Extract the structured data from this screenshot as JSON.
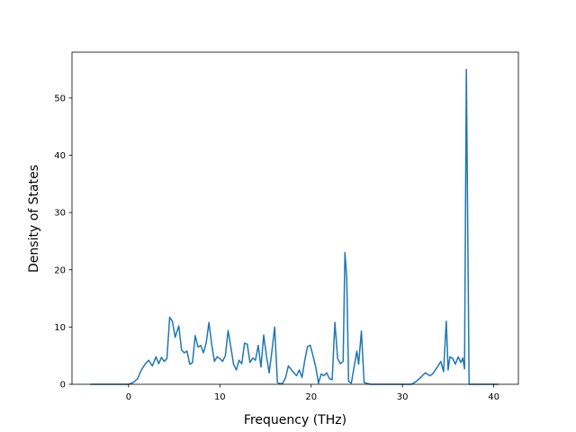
{
  "chart_data": {
    "type": "line",
    "title": "",
    "xlabel": "Frequency (THz)",
    "ylabel": "Density of States",
    "xlim": [
      -6.2,
      42.7
    ],
    "ylim": [
      0,
      58
    ],
    "xticks": [
      0,
      10,
      20,
      30,
      40
    ],
    "yticks": [
      0,
      10,
      20,
      30,
      40,
      50
    ],
    "grid": false,
    "legend": "none",
    "color": "#1f77b4",
    "series": [
      {
        "x": [
          -4.2,
          -3.0,
          -2.0,
          -1.0,
          0.0,
          0.5,
          1.0,
          1.4,
          1.8,
          2.2,
          2.6,
          3.0,
          3.3,
          3.6,
          3.9,
          4.2,
          4.5,
          4.8,
          5.1,
          5.5,
          5.8,
          6.1,
          6.4,
          6.7,
          7.0,
          7.3,
          7.6,
          7.9,
          8.2,
          8.5,
          8.8,
          9.1,
          9.4,
          9.7,
          10.0,
          10.3,
          10.6,
          10.9,
          11.2,
          11.5,
          11.8,
          12.1,
          12.4,
          12.7,
          13.0,
          13.3,
          13.6,
          13.9,
          14.2,
          14.5,
          14.8,
          15.1,
          15.4,
          15.7,
          16.0,
          16.3,
          16.6,
          16.9,
          17.2,
          17.5,
          17.8,
          18.1,
          18.4,
          18.7,
          19.0,
          19.3,
          19.6,
          19.9,
          20.2,
          20.5,
          20.8,
          21.1,
          21.4,
          21.7,
          22.0,
          22.3,
          22.6,
          22.9,
          23.2,
          23.5,
          23.7,
          23.9,
          24.1,
          24.4,
          24.7,
          25.0,
          25.2,
          25.5,
          25.8,
          26.5,
          28.0,
          30.0,
          31.0,
          31.5,
          32.0,
          32.5,
          33.0,
          33.3,
          33.6,
          33.9,
          34.2,
          34.5,
          34.8,
          35.0,
          35.2,
          35.5,
          35.8,
          36.1,
          36.4,
          36.6,
          36.8,
          37.0,
          37.3,
          38.0,
          39.0,
          40.5
        ],
        "y": [
          0,
          0,
          0,
          0,
          0,
          0.3,
          1.0,
          2.5,
          3.5,
          4.2,
          3.2,
          4.8,
          3.6,
          4.7,
          4.0,
          4.5,
          11.7,
          11.0,
          8.2,
          10.2,
          6.0,
          5.5,
          5.8,
          3.5,
          3.8,
          8.5,
          6.5,
          6.8,
          5.5,
          7.2,
          10.8,
          7.0,
          4.0,
          4.8,
          4.5,
          4.0,
          5.0,
          9.4,
          6.5,
          3.5,
          2.5,
          4.2,
          3.6,
          7.2,
          7.0,
          3.8,
          4.6,
          4.2,
          6.8,
          3.0,
          8.6,
          5.0,
          2.0,
          5.8,
          10.0,
          0.3,
          0.1,
          0.2,
          1.2,
          3.2,
          2.6,
          2.0,
          1.5,
          2.5,
          1.2,
          4.2,
          6.6,
          6.8,
          5.0,
          3.0,
          0.2,
          1.8,
          1.5,
          2.0,
          1.0,
          0.8,
          10.8,
          4.5,
          3.6,
          4.0,
          23.0,
          18.5,
          0.5,
          0.2,
          3.0,
          5.8,
          3.5,
          9.3,
          0.3,
          0,
          0,
          0,
          0,
          0.5,
          1.2,
          2.0,
          1.5,
          1.8,
          2.5,
          3.2,
          4.0,
          2.2,
          11.0,
          2.5,
          4.8,
          4.5,
          3.5,
          4.8,
          3.8,
          4.6,
          2.7,
          55.0,
          0,
          0,
          0,
          0
        ]
      }
    ]
  }
}
